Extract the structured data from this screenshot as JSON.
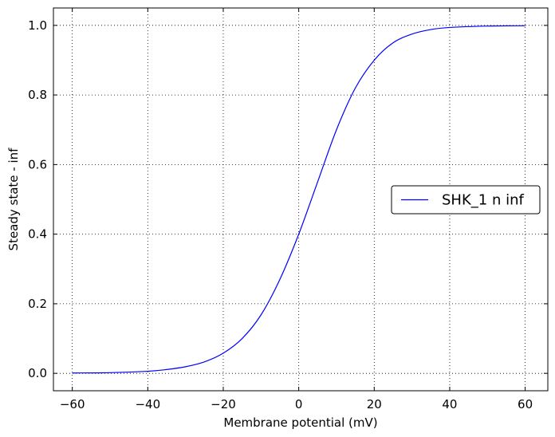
{
  "chart_data": {
    "type": "line",
    "xlabel": "Membrane potential (mV)",
    "ylabel": "Steady state - inf",
    "xlim": [
      -65,
      66
    ],
    "ylim": [
      -0.05,
      1.05
    ],
    "xticks": [
      -60,
      -40,
      -20,
      0,
      20,
      40,
      60
    ],
    "xtick_labels": [
      "−60",
      "−40",
      "−20",
      "0",
      "20",
      "40",
      "60"
    ],
    "yticks": [
      0.0,
      0.2,
      0.4,
      0.6,
      0.8,
      1.0
    ],
    "ytick_labels": [
      "0.0",
      "0.2",
      "0.4",
      "0.6",
      "0.8",
      "1.0"
    ],
    "grid": true,
    "legend_position": "center-right",
    "series": [
      {
        "name": "SHK_1 n inf",
        "color": "#0000ff",
        "x": [
          -60,
          -50,
          -40,
          -35,
          -30,
          -25,
          -20,
          -15,
          -10,
          -5,
          0,
          5,
          10,
          15,
          20,
          25,
          30,
          35,
          40,
          50,
          60
        ],
        "y": [
          0.001,
          0.002,
          0.006,
          0.011,
          0.019,
          0.033,
          0.058,
          0.1,
          0.168,
          0.27,
          0.4,
          0.55,
          0.7,
          0.82,
          0.9,
          0.95,
          0.975,
          0.988,
          0.994,
          0.998,
          0.999
        ]
      }
    ]
  }
}
